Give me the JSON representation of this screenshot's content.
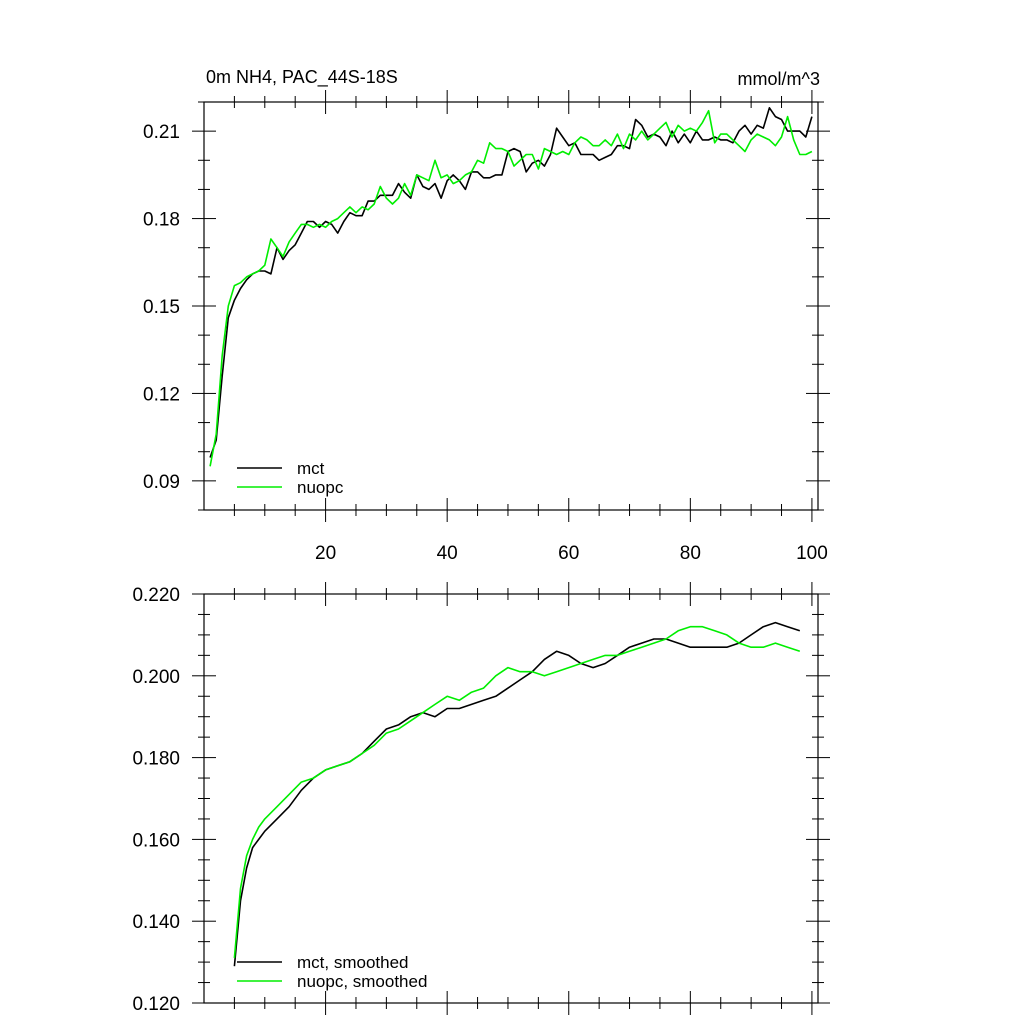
{
  "chart_data": [
    {
      "type": "line",
      "title": "0m NH4, PAC_44S-18S",
      "units": "mmol/m^3",
      "xlim": [
        0,
        101
      ],
      "ylim": [
        0.08,
        0.22
      ],
      "x_ticks": [
        20,
        40,
        60,
        80,
        100
      ],
      "y_ticks": [
        "0.09",
        "0.12",
        "0.15",
        "0.18",
        "0.21"
      ],
      "legend_position": "bottom-left",
      "series": [
        {
          "name": "mct",
          "color": "#000000",
          "x": [
            1,
            2,
            3,
            4,
            5,
            6,
            7,
            8,
            9,
            10,
            11,
            12,
            13,
            14,
            15,
            16,
            17,
            18,
            19,
            20,
            21,
            22,
            23,
            24,
            25,
            26,
            27,
            28,
            29,
            30,
            31,
            32,
            33,
            34,
            35,
            36,
            37,
            38,
            39,
            40,
            41,
            42,
            43,
            44,
            45,
            46,
            47,
            48,
            49,
            50,
            51,
            52,
            53,
            54,
            55,
            56,
            57,
            58,
            59,
            60,
            61,
            62,
            63,
            64,
            65,
            66,
            67,
            68,
            69,
            70,
            71,
            72,
            73,
            74,
            75,
            76,
            77,
            78,
            79,
            80,
            81,
            82,
            83,
            84,
            85,
            86,
            87,
            88,
            89,
            90,
            91,
            92,
            93,
            94,
            95,
            96,
            97,
            98,
            99,
            100
          ],
          "values": [
            0.098,
            0.104,
            0.126,
            0.146,
            0.152,
            0.156,
            0.159,
            0.161,
            0.162,
            0.162,
            0.161,
            0.17,
            0.166,
            0.169,
            0.171,
            0.175,
            0.179,
            0.179,
            0.177,
            0.179,
            0.178,
            0.175,
            0.179,
            0.182,
            0.181,
            0.181,
            0.186,
            0.186,
            0.188,
            0.188,
            0.188,
            0.192,
            0.189,
            0.187,
            0.195,
            0.191,
            0.19,
            0.192,
            0.187,
            0.193,
            0.195,
            0.193,
            0.19,
            0.196,
            0.196,
            0.194,
            0.194,
            0.195,
            0.195,
            0.203,
            0.204,
            0.203,
            0.196,
            0.199,
            0.2,
            0.198,
            0.202,
            0.211,
            0.208,
            0.205,
            0.206,
            0.202,
            0.202,
            0.202,
            0.2,
            0.201,
            0.202,
            0.205,
            0.205,
            0.204,
            0.214,
            0.212,
            0.208,
            0.209,
            0.208,
            0.205,
            0.21,
            0.206,
            0.209,
            0.206,
            0.21,
            0.207,
            0.207,
            0.208,
            0.207,
            0.207,
            0.206,
            0.21,
            0.212,
            0.209,
            0.212,
            0.211,
            0.218,
            0.215,
            0.214,
            0.21,
            0.21,
            0.21,
            0.208,
            0.215
          ]
        },
        {
          "name": "nuopc",
          "color": "#00ee00",
          "x": [
            1,
            2,
            3,
            4,
            5,
            6,
            7,
            8,
            9,
            10,
            11,
            12,
            13,
            14,
            15,
            16,
            17,
            18,
            19,
            20,
            21,
            22,
            23,
            24,
            25,
            26,
            27,
            28,
            29,
            30,
            31,
            32,
            33,
            34,
            35,
            36,
            37,
            38,
            39,
            40,
            41,
            42,
            43,
            44,
            45,
            46,
            47,
            48,
            49,
            50,
            51,
            52,
            53,
            54,
            55,
            56,
            57,
            58,
            59,
            60,
            61,
            62,
            63,
            64,
            65,
            66,
            67,
            68,
            69,
            70,
            71,
            72,
            73,
            74,
            75,
            76,
            77,
            78,
            79,
            80,
            81,
            82,
            83,
            84,
            85,
            86,
            87,
            88,
            89,
            90,
            91,
            92,
            93,
            94,
            95,
            96,
            97,
            98,
            99,
            100
          ],
          "values": [
            0.095,
            0.106,
            0.133,
            0.15,
            0.157,
            0.158,
            0.16,
            0.161,
            0.162,
            0.164,
            0.173,
            0.17,
            0.167,
            0.172,
            0.175,
            0.178,
            0.178,
            0.177,
            0.178,
            0.177,
            0.179,
            0.18,
            0.182,
            0.184,
            0.182,
            0.184,
            0.183,
            0.185,
            0.191,
            0.187,
            0.185,
            0.187,
            0.192,
            0.188,
            0.195,
            0.194,
            0.193,
            0.2,
            0.194,
            0.195,
            0.192,
            0.193,
            0.195,
            0.196,
            0.2,
            0.199,
            0.206,
            0.204,
            0.204,
            0.203,
            0.198,
            0.2,
            0.202,
            0.202,
            0.197,
            0.204,
            0.203,
            0.202,
            0.203,
            0.202,
            0.206,
            0.208,
            0.207,
            0.205,
            0.205,
            0.207,
            0.205,
            0.209,
            0.204,
            0.209,
            0.207,
            0.21,
            0.207,
            0.209,
            0.211,
            0.213,
            0.208,
            0.212,
            0.21,
            0.211,
            0.21,
            0.213,
            0.217,
            0.206,
            0.209,
            0.209,
            0.207,
            0.205,
            0.203,
            0.207,
            0.209,
            0.208,
            0.207,
            0.205,
            0.208,
            0.215,
            0.207,
            0.202,
            0.202,
            0.203
          ]
        }
      ]
    },
    {
      "type": "line",
      "xlim": [
        0,
        101
      ],
      "ylim": [
        0.12,
        0.22
      ],
      "y_ticks": [
        "0.120",
        "0.140",
        "0.160",
        "0.180",
        "0.200",
        "0.220"
      ],
      "legend_position": "bottom-left",
      "series": [
        {
          "name": "mct, smoothed",
          "color": "#000000",
          "x": [
            5,
            6,
            7,
            8,
            9,
            10,
            12,
            14,
            16,
            18,
            20,
            22,
            24,
            26,
            28,
            30,
            32,
            34,
            36,
            38,
            40,
            42,
            44,
            46,
            48,
            50,
            52,
            54,
            56,
            58,
            60,
            62,
            64,
            66,
            68,
            70,
            72,
            74,
            76,
            78,
            80,
            82,
            84,
            86,
            88,
            90,
            92,
            94,
            96,
            98
          ],
          "values": [
            0.129,
            0.145,
            0.153,
            0.158,
            0.16,
            0.162,
            0.165,
            0.168,
            0.172,
            0.175,
            0.177,
            0.178,
            0.179,
            0.181,
            0.184,
            0.187,
            0.188,
            0.19,
            0.191,
            0.19,
            0.192,
            0.192,
            0.193,
            0.194,
            0.195,
            0.197,
            0.199,
            0.201,
            0.204,
            0.206,
            0.205,
            0.203,
            0.202,
            0.203,
            0.205,
            0.207,
            0.208,
            0.209,
            0.209,
            0.208,
            0.207,
            0.207,
            0.207,
            0.207,
            0.208,
            0.21,
            0.212,
            0.213,
            0.212,
            0.211
          ]
        },
        {
          "name": "nuopc, smoothed",
          "color": "#00ee00",
          "x": [
            5,
            6,
            7,
            8,
            9,
            10,
            12,
            14,
            16,
            18,
            20,
            22,
            24,
            26,
            28,
            30,
            32,
            34,
            36,
            38,
            40,
            42,
            44,
            46,
            48,
            50,
            52,
            54,
            56,
            58,
            60,
            62,
            64,
            66,
            68,
            70,
            72,
            74,
            76,
            78,
            80,
            82,
            84,
            86,
            88,
            90,
            92,
            94,
            96,
            98
          ],
          "values": [
            0.131,
            0.148,
            0.156,
            0.16,
            0.163,
            0.165,
            0.168,
            0.171,
            0.174,
            0.175,
            0.177,
            0.178,
            0.179,
            0.181,
            0.183,
            0.186,
            0.187,
            0.189,
            0.191,
            0.193,
            0.195,
            0.194,
            0.196,
            0.197,
            0.2,
            0.202,
            0.201,
            0.201,
            0.2,
            0.201,
            0.202,
            0.203,
            0.204,
            0.205,
            0.205,
            0.206,
            0.207,
            0.208,
            0.209,
            0.211,
            0.212,
            0.212,
            0.211,
            0.21,
            0.208,
            0.207,
            0.207,
            0.208,
            0.207,
            0.206
          ]
        }
      ]
    }
  ]
}
